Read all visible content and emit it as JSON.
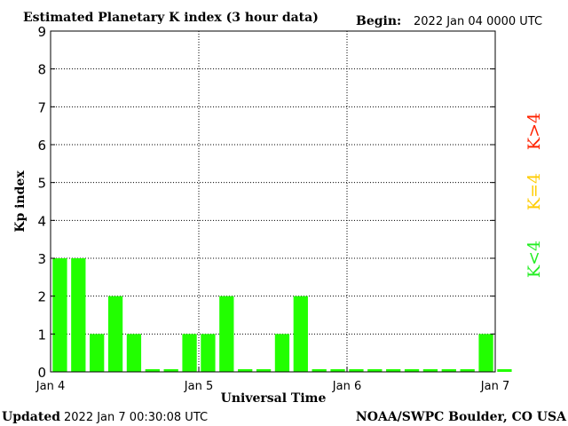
{
  "header": {
    "title": "Estimated Planetary K index (3 hour data)",
    "begin_label": "Begin:",
    "begin_value": "2022 Jan 04 0000 UTC"
  },
  "footer": {
    "updated_label": "Updated",
    "updated_value": "2022 Jan  7 00:30:08 UTC",
    "credit": "NOAA/SWPC Boulder, CO USA"
  },
  "legend": [
    {
      "label": "K>4",
      "color": "#ff2200"
    },
    {
      "label": "K=4",
      "color": "#ffcc00"
    },
    {
      "label": "K<4",
      "color": "#22ee22"
    }
  ],
  "chart_data": {
    "type": "bar",
    "title": "Estimated Planetary K index (3 hour data)",
    "xlabel": "Universal Time",
    "ylabel": "Kp index",
    "ylim": [
      0,
      9
    ],
    "yticks": [
      0,
      1,
      2,
      3,
      4,
      5,
      6,
      7,
      8,
      9
    ],
    "xtick_labels": [
      "Jan 4",
      "Jan 5",
      "Jan 6",
      "Jan 7"
    ],
    "grid": true,
    "bar_color": "#22ff00",
    "values": [
      3,
      3,
      1,
      2,
      1,
      0,
      0,
      1,
      1,
      2,
      0,
      0,
      1,
      2,
      0,
      0,
      0,
      0,
      0,
      0,
      0,
      0,
      0,
      1,
      0
    ]
  }
}
